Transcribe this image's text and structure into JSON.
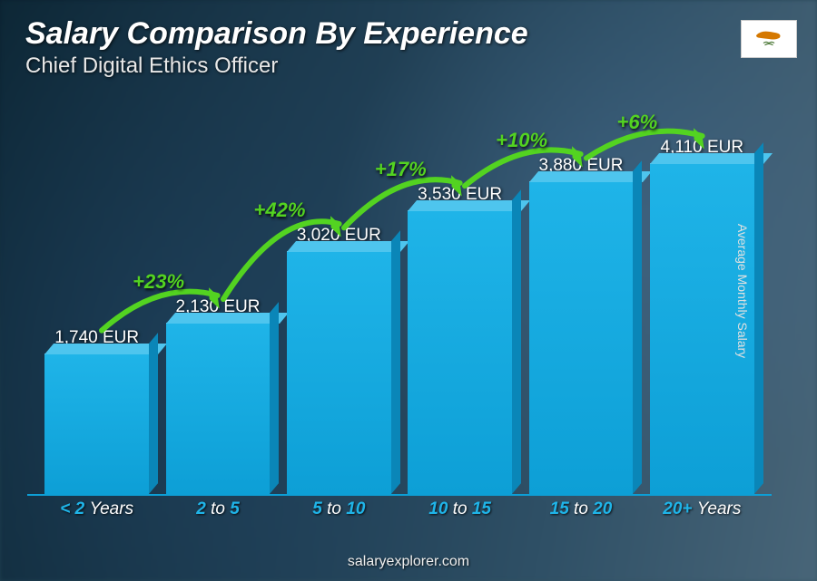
{
  "header": {
    "title": "Salary Comparison By Experience",
    "subtitle": "Chief Digital Ethics Officer"
  },
  "flag": {
    "country": "Cyprus"
  },
  "yaxis_label": "Average Monthly Salary",
  "chart": {
    "type": "bar-3d",
    "currency": "EUR",
    "max_value": 4110,
    "bar_color_top": "#4ec5ee",
    "bar_color_front": "#1fb4e8",
    "bar_color_side": "#0a86b8",
    "delta_color": "#53d321",
    "xlabel_color": "#1fb4e8",
    "background_gradient": [
      "#0d2736",
      "#486578"
    ],
    "bars": [
      {
        "label_prefix": "<",
        "label_main": " 2 ",
        "label_suffix": "Years",
        "value": 1740,
        "value_label": "1,740 EUR"
      },
      {
        "label_prefix": "",
        "label_main": "2 ",
        "label_mid": "to",
        "label_main2": " 5",
        "value": 2130,
        "value_label": "2,130 EUR",
        "delta": "+23%"
      },
      {
        "label_prefix": "",
        "label_main": "5 ",
        "label_mid": "to",
        "label_main2": " 10",
        "value": 3020,
        "value_label": "3,020 EUR",
        "delta": "+42%"
      },
      {
        "label_prefix": "",
        "label_main": "10 ",
        "label_mid": "to",
        "label_main2": " 15",
        "value": 3530,
        "value_label": "3,530 EUR",
        "delta": "+17%"
      },
      {
        "label_prefix": "",
        "label_main": "15 ",
        "label_mid": "to",
        "label_main2": " 20",
        "value": 3880,
        "value_label": "3,880 EUR",
        "delta": "+10%"
      },
      {
        "label_prefix": "",
        "label_main": "20+ ",
        "label_suffix": "Years",
        "value": 4110,
        "value_label": "4,110 EUR",
        "delta": "+6%"
      }
    ]
  },
  "footer": "salaryexplorer.com"
}
